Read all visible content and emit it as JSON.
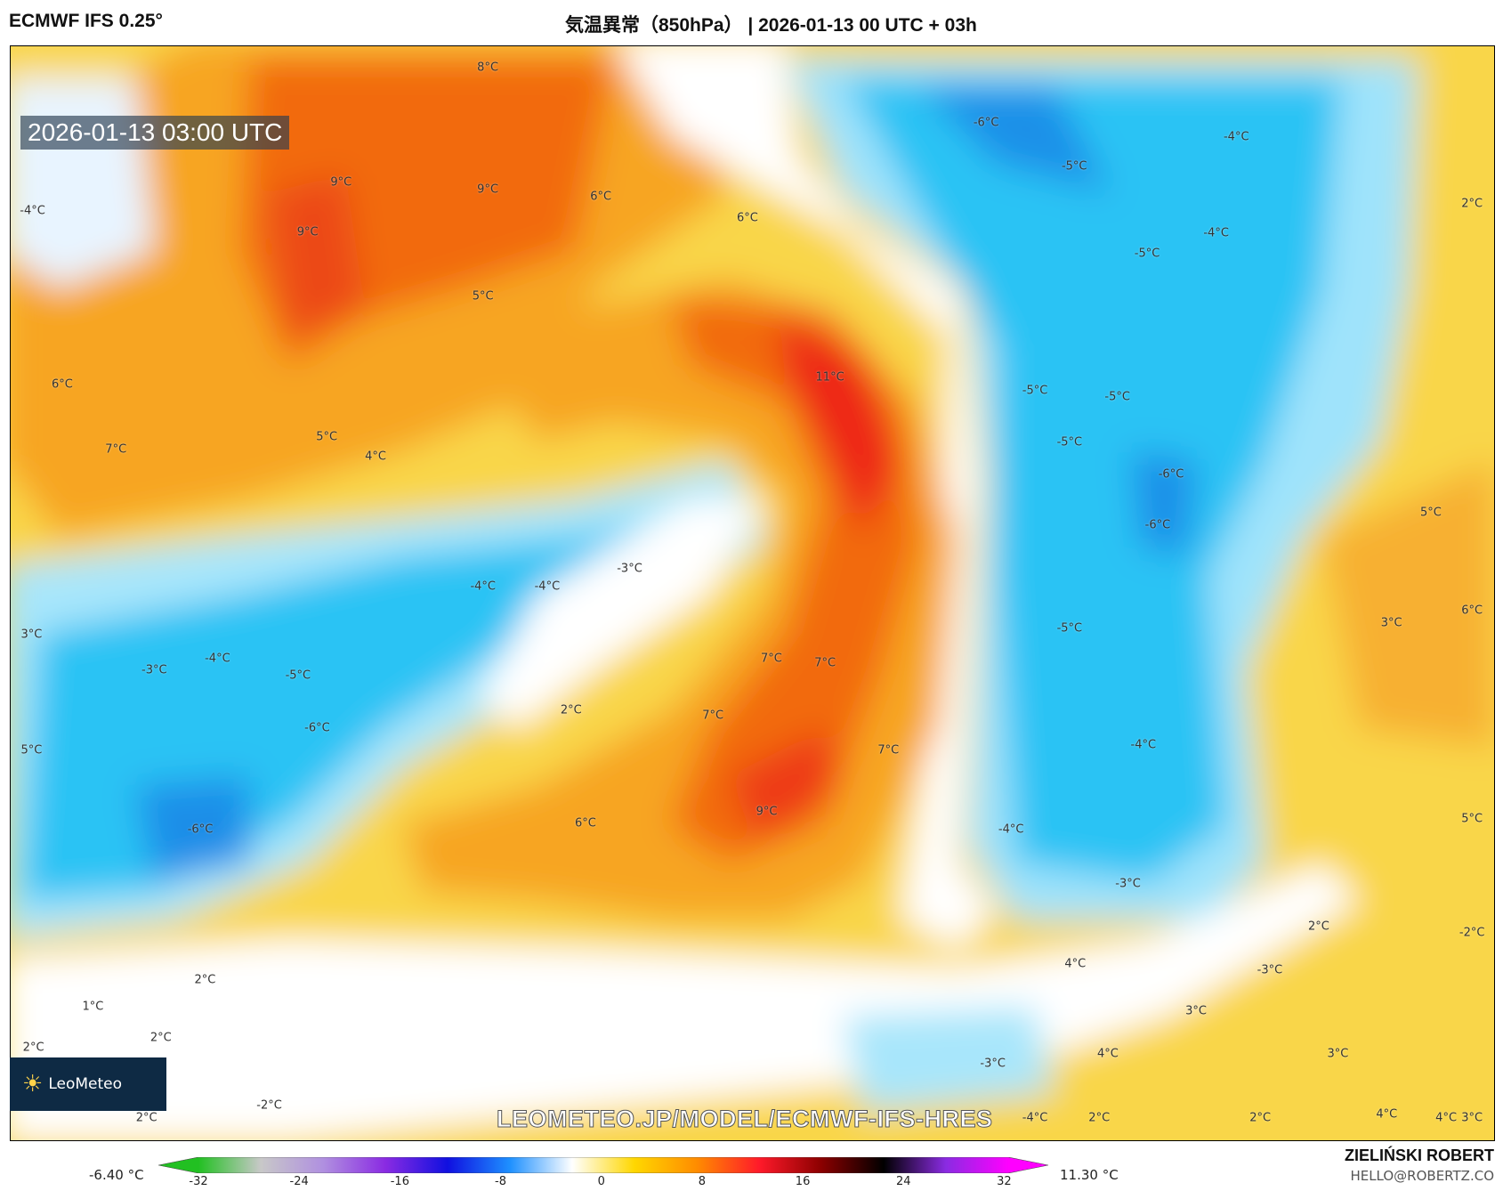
{
  "header": {
    "model": "ECMWF IFS 0.25°",
    "title": "気温異常（850hPa） | 2026-01-13 00 UTC + 03h"
  },
  "map": {
    "valid_time": "2026-01-13 03:00 UTC",
    "watermark": "LEOMETEO.JP/MODEL/ECMWF-IFS-HRES",
    "logo_text": "LeoMeteo",
    "labels": [
      "8°C",
      "9°C",
      "9°C",
      "9°C",
      "6°C",
      "6°C",
      "5°C",
      "-6°C",
      "-5°C",
      "-4°C",
      "-4°C",
      "-5°C",
      "2°C",
      "-4°C",
      "6°C",
      "7°C",
      "5°C",
      "4°C",
      "11°C",
      "-5°C",
      "-5°C",
      "-5°C",
      "-6°C",
      "-6°C",
      "5°C",
      "-3°C",
      "-4°C",
      "-4°C",
      "3°C",
      "-3°C",
      "-4°C",
      "-5°C",
      "-6°C",
      "2°C",
      "7°C",
      "7°C",
      "7°C",
      "7°C",
      "-5°C",
      "3°C",
      "6°C",
      "-4°C",
      "5°C",
      "-6°C",
      "6°C",
      "9°C",
      "-4°C",
      "5°C",
      "-3°C",
      "2°C",
      "-2°C",
      "4°C",
      "-3°C",
      "2°C",
      "1°C",
      "2°C",
      "2°C",
      "3°C",
      "3°C",
      "4°C",
      "-3°C",
      "-2°C",
      "2°C",
      "-4°C",
      "2°C",
      "2°C",
      "4°C",
      "4°C",
      "3°C"
    ]
  },
  "colorbar": {
    "min_value": "-6.40 °C",
    "max_value": "11.30 °C",
    "ticks": [
      "-32",
      "-24",
      "-16",
      "-8",
      "0",
      "8",
      "16",
      "24",
      "32"
    ],
    "colors": [
      "#22c022",
      "#c8c8c8",
      "#b090e0",
      "#8a2be2",
      "#1010e0",
      "#1e90ff",
      "#ffffff",
      "#ffd700",
      "#ff8c00",
      "#ff1a2a",
      "#8b0000",
      "#000000",
      "#8a2be2",
      "#ff00ff"
    ]
  },
  "credits": {
    "author": "ZIELIŃSKI ROBERT",
    "email": "HELLO@ROBERTZ.CO"
  }
}
